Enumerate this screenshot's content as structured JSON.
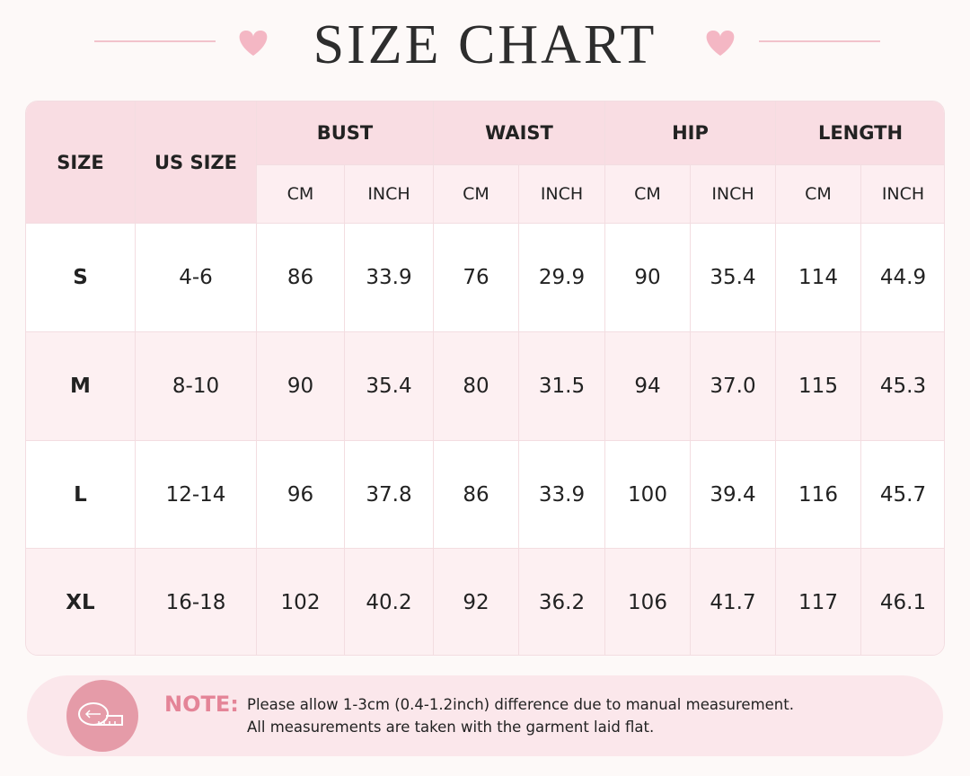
{
  "title": "SIZE CHART",
  "table": {
    "headers": [
      "SIZE",
      "US SIZE"
    ],
    "groups": [
      "BUST",
      "WAIST",
      "HIP",
      "LENGTH"
    ],
    "units": [
      "CM",
      "INCH",
      "CM",
      "INCH",
      "CM",
      "INCH",
      "CM",
      "INCH"
    ],
    "rows": [
      [
        "S",
        "4-6",
        "86",
        "33.9",
        "76",
        "29.9",
        "90",
        "35.4",
        "114",
        "44.9"
      ],
      [
        "M",
        "8-10",
        "90",
        "35.4",
        "80",
        "31.5",
        "94",
        "37.0",
        "115",
        "45.3"
      ],
      [
        "L",
        "12-14",
        "96",
        "37.8",
        "86",
        "33.9",
        "100",
        "39.4",
        "116",
        "45.7"
      ],
      [
        "XL",
        "16-18",
        "102",
        "40.2",
        "92",
        "36.2",
        "106",
        "41.7",
        "117",
        "46.1"
      ]
    ]
  },
  "note": {
    "label": "NOTE:",
    "lines": [
      "Please allow 1-3cm (0.4-1.2inch) difference due to manual measurement.",
      "All measurements are taken with the garment laid flat."
    ]
  }
}
